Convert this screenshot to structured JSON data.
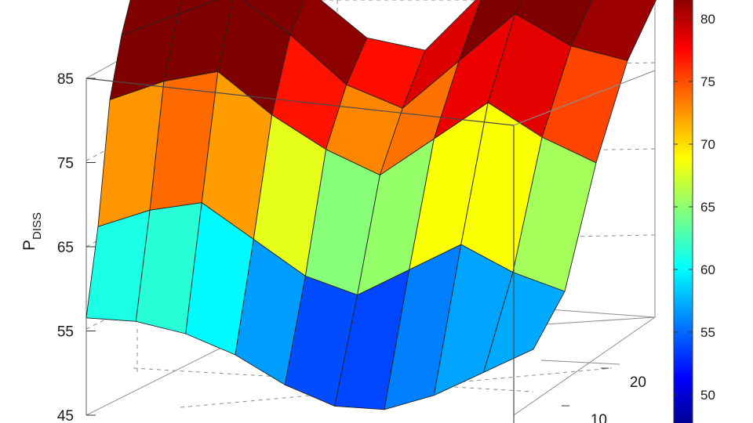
{
  "chart_data": {
    "type": "surface",
    "z_axis": {
      "label_main": "P",
      "label_sub": "DISS",
      "ticks": [
        45,
        55,
        65,
        75,
        85
      ],
      "range": [
        45,
        85
      ]
    },
    "side_axis": {
      "ticks": [
        20,
        10
      ],
      "tick_labels": [
        "20",
        "10"
      ]
    },
    "colorbar": {
      "colormap": "jet",
      "ticks": [
        50,
        55,
        60,
        65,
        70,
        75,
        80
      ],
      "range": [
        47,
        82
      ]
    },
    "surface": {
      "rows": 5,
      "cols": 10,
      "z": [
        [
          88,
          90,
          92,
          86,
          80,
          78,
          84,
          88,
          84,
          82
        ],
        [
          84,
          86,
          88,
          83,
          77,
          74,
          79,
          84,
          80,
          78
        ],
        [
          78,
          80,
          81,
          76,
          72,
          69,
          73,
          77,
          73,
          70
        ],
        [
          65,
          67,
          68,
          64,
          60,
          58,
          61,
          64,
          61,
          59
        ],
        [
          56,
          56,
          55,
          53,
          50,
          48,
          48,
          50,
          53,
          56
        ]
      ]
    },
    "grid": true
  }
}
